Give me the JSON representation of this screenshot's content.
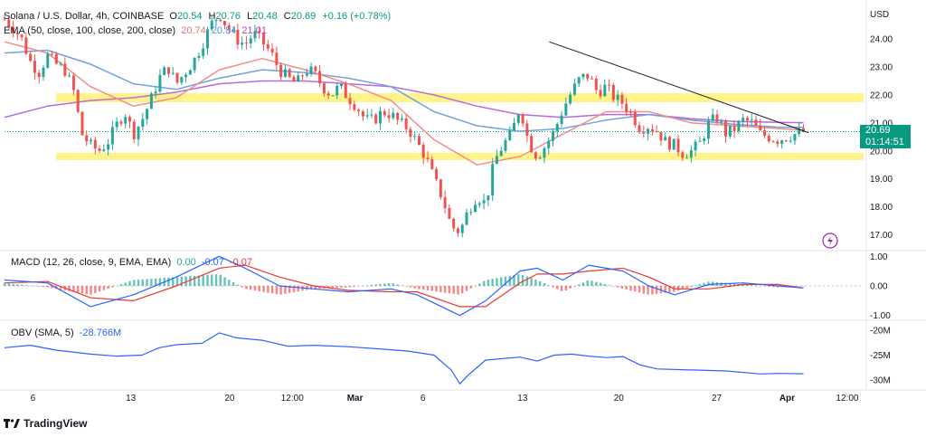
{
  "header": {
    "symbol": "Solana / U.S. Dollar, 4h, COINBASE",
    "open_label": "O",
    "open": "20.54",
    "high_label": "H",
    "high": "20.76",
    "low_label": "L",
    "low": "20.48",
    "close_label": "C",
    "close": "20.69",
    "change": "+0.16 (+0.78%)"
  },
  "ema_legend": {
    "label": "EMA (50, close, 100, close, 200, close)",
    "v50": "20.74",
    "v100": "20.84",
    "v200": "21.01"
  },
  "macd_legend": {
    "label": "MACD (12, 26, close, 9, EMA, EMA)",
    "hist": "0.00",
    "macd": "-0.07",
    "signal": "-0.07"
  },
  "obv_legend": {
    "label": "OBV (SMA, 5)",
    "value": "-28.766M"
  },
  "price_tag": {
    "price": "20.69",
    "countdown": "01:14:51"
  },
  "branding": "TradingView",
  "colors": {
    "up": "#26a69a",
    "down": "#ef5350",
    "ema50": "#f28b8b",
    "ema100": "#6fa3dc",
    "ema200": "#b86bd6",
    "zone": "#fff176",
    "trendline": "#131722",
    "tag": "#089981",
    "macd_line": "#2962ff",
    "signal_line": "#e53935",
    "obv_line": "#2962ff",
    "lightning": "#9c27b0"
  },
  "chart_data": [
    {
      "type": "candlestick",
      "title": "Solana / U.S. Dollar, 4h, COINBASE",
      "currency_label": "USD",
      "y_ticks": [
        "24.00",
        "23.00",
        "22.00",
        "21.00",
        "20.00",
        "19.00",
        "18.00",
        "17.00"
      ],
      "y_range": [
        16.5,
        25.2
      ],
      "x_ticks": [
        "6",
        "13",
        "20",
        "12:00",
        "Mar",
        "6",
        "13",
        "20",
        "27",
        "Apr",
        "12:00"
      ],
      "x_ticks_bold": [
        "Mar",
        "Apr"
      ],
      "last_price": 20.69,
      "support_zone": 19.8,
      "resistance_zone": 21.9,
      "trendline": [
        [
          0.634,
          23.9
        ],
        [
          0.936,
          20.65
        ]
      ],
      "close_path": [
        [
          0.0,
          24.7
        ],
        [
          0.01,
          24.4
        ],
        [
          0.02,
          24.0
        ],
        [
          0.03,
          23.2
        ],
        [
          0.04,
          22.8
        ],
        [
          0.05,
          23.4
        ],
        [
          0.06,
          23.1
        ],
        [
          0.07,
          22.9
        ],
        [
          0.08,
          22.2
        ],
        [
          0.09,
          20.6
        ],
        [
          0.1,
          20.2
        ],
        [
          0.11,
          20.0
        ],
        [
          0.12,
          20.3
        ],
        [
          0.13,
          20.9
        ],
        [
          0.14,
          21.4
        ],
        [
          0.15,
          20.6
        ],
        [
          0.16,
          21.1
        ],
        [
          0.17,
          21.8
        ],
        [
          0.18,
          22.6
        ],
        [
          0.19,
          23.0
        ],
        [
          0.2,
          22.4
        ],
        [
          0.21,
          22.8
        ],
        [
          0.22,
          23.2
        ],
        [
          0.23,
          23.8
        ],
        [
          0.24,
          24.5
        ],
        [
          0.25,
          24.9
        ],
        [
          0.26,
          24.4
        ],
        [
          0.27,
          24.0
        ],
        [
          0.28,
          23.8
        ],
        [
          0.29,
          24.2
        ],
        [
          0.3,
          23.9
        ],
        [
          0.31,
          23.5
        ],
        [
          0.32,
          22.9
        ],
        [
          0.33,
          22.6
        ],
        [
          0.34,
          22.4
        ],
        [
          0.35,
          22.9
        ],
        [
          0.36,
          22.8
        ],
        [
          0.37,
          22.3
        ],
        [
          0.38,
          22.0
        ],
        [
          0.39,
          22.3
        ],
        [
          0.4,
          21.9
        ],
        [
          0.41,
          21.6
        ],
        [
          0.42,
          21.1
        ],
        [
          0.43,
          21.1
        ],
        [
          0.44,
          21.4
        ],
        [
          0.45,
          21.3
        ],
        [
          0.46,
          21.0
        ],
        [
          0.47,
          20.8
        ],
        [
          0.48,
          20.3
        ],
        [
          0.49,
          19.8
        ],
        [
          0.5,
          19.0
        ],
        [
          0.51,
          18.3
        ],
        [
          0.52,
          17.3
        ],
        [
          0.53,
          17.1
        ],
        [
          0.54,
          17.9
        ],
        [
          0.55,
          18.4
        ],
        [
          0.56,
          18.1
        ],
        [
          0.57,
          19.6
        ],
        [
          0.58,
          20.2
        ],
        [
          0.59,
          20.6
        ],
        [
          0.6,
          21.6
        ],
        [
          0.61,
          20.3
        ],
        [
          0.62,
          19.8
        ],
        [
          0.63,
          20.2
        ],
        [
          0.64,
          20.7
        ],
        [
          0.65,
          21.5
        ],
        [
          0.66,
          22.1
        ],
        [
          0.67,
          22.6
        ],
        [
          0.68,
          22.7
        ],
        [
          0.69,
          22.1
        ],
        [
          0.7,
          22.3
        ],
        [
          0.71,
          21.9
        ],
        [
          0.72,
          21.7
        ],
        [
          0.73,
          21.3
        ],
        [
          0.74,
          20.8
        ],
        [
          0.75,
          20.9
        ],
        [
          0.76,
          20.7
        ],
        [
          0.77,
          20.3
        ],
        [
          0.78,
          20.2
        ],
        [
          0.79,
          19.9
        ],
        [
          0.8,
          20.0
        ],
        [
          0.81,
          20.3
        ],
        [
          0.82,
          21.0
        ],
        [
          0.83,
          21.2
        ],
        [
          0.84,
          20.6
        ],
        [
          0.85,
          20.8
        ],
        [
          0.86,
          21.1
        ],
        [
          0.87,
          21.0
        ],
        [
          0.88,
          20.6
        ],
        [
          0.89,
          20.5
        ],
        [
          0.9,
          20.4
        ],
        [
          0.91,
          20.5
        ],
        [
          0.92,
          20.6
        ],
        [
          0.93,
          20.7
        ]
      ],
      "ema50_path": [
        [
          0.0,
          23.9
        ],
        [
          0.05,
          23.5
        ],
        [
          0.1,
          22.3
        ],
        [
          0.15,
          21.6
        ],
        [
          0.2,
          21.9
        ],
        [
          0.25,
          22.9
        ],
        [
          0.3,
          23.3
        ],
        [
          0.35,
          22.9
        ],
        [
          0.4,
          22.4
        ],
        [
          0.45,
          21.8
        ],
        [
          0.5,
          20.4
        ],
        [
          0.55,
          19.5
        ],
        [
          0.6,
          19.8
        ],
        [
          0.65,
          20.6
        ],
        [
          0.7,
          21.4
        ],
        [
          0.75,
          21.4
        ],
        [
          0.8,
          21.0
        ],
        [
          0.85,
          20.9
        ],
        [
          0.9,
          20.8
        ],
        [
          0.93,
          20.74
        ]
      ],
      "ema100_path": [
        [
          0.0,
          23.5
        ],
        [
          0.05,
          23.6
        ],
        [
          0.1,
          23.1
        ],
        [
          0.15,
          22.4
        ],
        [
          0.2,
          22.2
        ],
        [
          0.25,
          22.6
        ],
        [
          0.3,
          22.9
        ],
        [
          0.35,
          22.8
        ],
        [
          0.4,
          22.6
        ],
        [
          0.45,
          22.3
        ],
        [
          0.5,
          21.4
        ],
        [
          0.55,
          20.9
        ],
        [
          0.6,
          20.7
        ],
        [
          0.65,
          20.8
        ],
        [
          0.7,
          21.1
        ],
        [
          0.75,
          21.3
        ],
        [
          0.8,
          21.1
        ],
        [
          0.85,
          20.95
        ],
        [
          0.9,
          20.85
        ],
        [
          0.93,
          20.84
        ]
      ],
      "ema200_path": [
        [
          0.0,
          21.2
        ],
        [
          0.05,
          21.6
        ],
        [
          0.1,
          21.8
        ],
        [
          0.15,
          21.9
        ],
        [
          0.2,
          22.1
        ],
        [
          0.25,
          22.4
        ],
        [
          0.3,
          22.5
        ],
        [
          0.35,
          22.5
        ],
        [
          0.4,
          22.4
        ],
        [
          0.45,
          22.3
        ],
        [
          0.5,
          22.0
        ],
        [
          0.55,
          21.6
        ],
        [
          0.6,
          21.3
        ],
        [
          0.65,
          21.2
        ],
        [
          0.7,
          21.3
        ],
        [
          0.75,
          21.3
        ],
        [
          0.8,
          21.15
        ],
        [
          0.85,
          21.05
        ],
        [
          0.9,
          21.02
        ],
        [
          0.93,
          21.01
        ]
      ]
    },
    {
      "type": "line",
      "title": "MACD (12, 26, close, 9, EMA, EMA)",
      "y_ticks": [
        "1.00",
        "0.00",
        "-1.00"
      ],
      "y_range": [
        -1.1,
        1.1
      ],
      "series": [
        {
          "name": "MACD",
          "values": [
            [
              0.0,
              0.2
            ],
            [
              0.05,
              0.1
            ],
            [
              0.1,
              -0.7
            ],
            [
              0.15,
              -0.3
            ],
            [
              0.2,
              0.3
            ],
            [
              0.25,
              1.0
            ],
            [
              0.28,
              0.6
            ],
            [
              0.32,
              0.0
            ],
            [
              0.36,
              -0.1
            ],
            [
              0.4,
              -0.2
            ],
            [
              0.45,
              -0.1
            ],
            [
              0.48,
              -0.3
            ],
            [
              0.53,
              -1.0
            ],
            [
              0.56,
              -0.5
            ],
            [
              0.6,
              0.5
            ],
            [
              0.62,
              0.6
            ],
            [
              0.65,
              0.2
            ],
            [
              0.68,
              0.7
            ],
            [
              0.72,
              0.5
            ],
            [
              0.75,
              0.0
            ],
            [
              0.78,
              -0.3
            ],
            [
              0.82,
              0.05
            ],
            [
              0.86,
              0.1
            ],
            [
              0.9,
              0.0
            ],
            [
              0.93,
              -0.07
            ]
          ]
        },
        {
          "name": "Signal",
          "values": [
            [
              0.0,
              0.1
            ],
            [
              0.05,
              0.15
            ],
            [
              0.1,
              -0.4
            ],
            [
              0.15,
              -0.5
            ],
            [
              0.2,
              0.0
            ],
            [
              0.25,
              0.6
            ],
            [
              0.28,
              0.7
            ],
            [
              0.32,
              0.3
            ],
            [
              0.36,
              0.0
            ],
            [
              0.4,
              -0.15
            ],
            [
              0.45,
              -0.2
            ],
            [
              0.48,
              -0.2
            ],
            [
              0.53,
              -0.7
            ],
            [
              0.56,
              -0.7
            ],
            [
              0.6,
              0.1
            ],
            [
              0.62,
              0.4
            ],
            [
              0.65,
              0.4
            ],
            [
              0.68,
              0.5
            ],
            [
              0.72,
              0.6
            ],
            [
              0.75,
              0.3
            ],
            [
              0.78,
              -0.1
            ],
            [
              0.82,
              -0.1
            ],
            [
              0.86,
              0.05
            ],
            [
              0.9,
              0.05
            ],
            [
              0.93,
              -0.07
            ]
          ]
        }
      ]
    },
    {
      "type": "line",
      "title": "OBV (SMA, 5)",
      "y_ticks": [
        "-20M",
        "-25M",
        "-30M"
      ],
      "y_range": [
        -31.5,
        -18.5
      ],
      "series": [
        {
          "name": "OBV",
          "values": [
            [
              0.0,
              -23.5
            ],
            [
              0.03,
              -23.0
            ],
            [
              0.06,
              -24.0
            ],
            [
              0.1,
              -24.8
            ],
            [
              0.13,
              -25.2
            ],
            [
              0.16,
              -25.0
            ],
            [
              0.18,
              -23.5
            ],
            [
              0.2,
              -22.9
            ],
            [
              0.23,
              -22.6
            ],
            [
              0.25,
              -20.5
            ],
            [
              0.27,
              -21.5
            ],
            [
              0.3,
              -22.0
            ],
            [
              0.33,
              -23.2
            ],
            [
              0.36,
              -23.0
            ],
            [
              0.4,
              -23.3
            ],
            [
              0.44,
              -23.8
            ],
            [
              0.47,
              -24.2
            ],
            [
              0.5,
              -25.0
            ],
            [
              0.52,
              -28.0
            ],
            [
              0.53,
              -30.8
            ],
            [
              0.54,
              -29.0
            ],
            [
              0.56,
              -26.0
            ],
            [
              0.6,
              -25.4
            ],
            [
              0.62,
              -26.2
            ],
            [
              0.64,
              -25.0
            ],
            [
              0.66,
              -24.8
            ],
            [
              0.68,
              -25.2
            ],
            [
              0.7,
              -25.5
            ],
            [
              0.72,
              -25.3
            ],
            [
              0.74,
              -27.0
            ],
            [
              0.76,
              -27.8
            ],
            [
              0.8,
              -28.0
            ],
            [
              0.84,
              -28.2
            ],
            [
              0.88,
              -28.8
            ],
            [
              0.9,
              -28.7
            ],
            [
              0.93,
              -28.77
            ]
          ]
        }
      ]
    }
  ]
}
